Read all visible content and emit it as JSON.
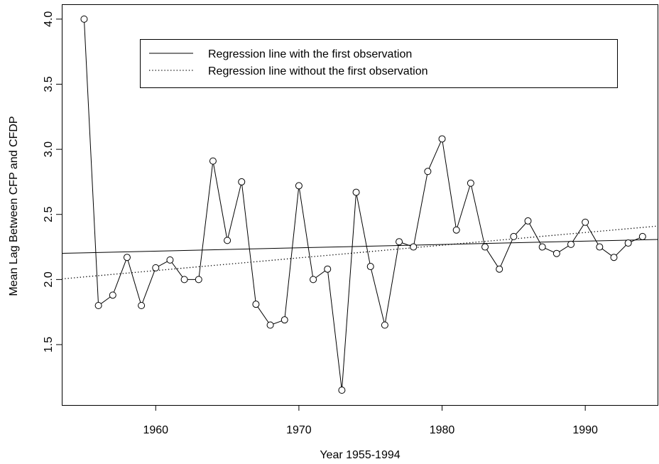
{
  "chart_data": {
    "type": "line",
    "xlabel": "Year 1955-1994",
    "ylabel": "Mean Lag Between CFP and CFDP",
    "x": [
      1955,
      1956,
      1957,
      1958,
      1959,
      1960,
      1961,
      1962,
      1963,
      1964,
      1965,
      1966,
      1967,
      1968,
      1969,
      1970,
      1971,
      1972,
      1973,
      1974,
      1975,
      1976,
      1977,
      1978,
      1979,
      1980,
      1981,
      1982,
      1983,
      1984,
      1985,
      1986,
      1987,
      1988,
      1989,
      1990,
      1991,
      1992,
      1993,
      1994
    ],
    "values": [
      4.0,
      1.8,
      1.88,
      2.17,
      1.8,
      2.09,
      2.15,
      2.0,
      2.0,
      2.91,
      2.3,
      2.75,
      1.81,
      1.65,
      1.69,
      2.72,
      2.0,
      2.08,
      1.15,
      2.67,
      2.1,
      1.65,
      2.29,
      2.25,
      2.83,
      3.08,
      2.38,
      2.74,
      2.25,
      2.08,
      2.33,
      2.45,
      2.25,
      2.2,
      2.27,
      2.44,
      2.25,
      2.17,
      2.28,
      2.33
    ],
    "color": "#000000",
    "regression_lines": [
      {
        "name": "Regression line with the first observation",
        "style": "solid",
        "x": [
          1955,
          1994
        ],
        "values": [
          2.205,
          2.305
        ]
      },
      {
        "name": "Regression line without the first observation",
        "style": "dotted",
        "x": [
          1955,
          1994
        ],
        "values": [
          2.02,
          2.4
        ]
      }
    ],
    "xlim": [
      1953.44,
      1995.1
    ],
    "ylim": [
      1.036,
      4.114
    ],
    "xticks": [
      1960,
      1970,
      1980,
      1990
    ],
    "yticks": [
      1.5,
      2.0,
      2.5,
      3.0,
      3.5,
      4.0
    ],
    "ytick_labels": [
      "1.5",
      "2.0",
      "2.5",
      "3.0",
      "3.5",
      "4.0"
    ]
  }
}
